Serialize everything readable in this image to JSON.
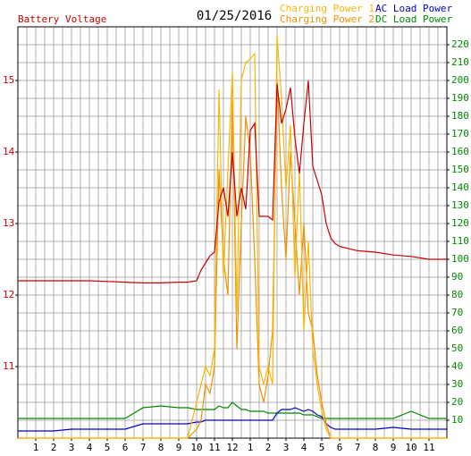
{
  "chart_data": {
    "type": "line",
    "title": "01/25/2016",
    "x": [
      0,
      1,
      2,
      3,
      4,
      5,
      6,
      7,
      8,
      9,
      9.5,
      10,
      10.25,
      10.5,
      10.75,
      11,
      11.25,
      11.5,
      11.75,
      12,
      12.25,
      12.5,
      12.75,
      13,
      13.25,
      13.5,
      13.75,
      14,
      14.25,
      14.5,
      14.75,
      15,
      15.25,
      15.5,
      15.75,
      16,
      16.25,
      16.5,
      16.75,
      17,
      17.25,
      17.5,
      17.75,
      18,
      19,
      20,
      21,
      22,
      23,
      24
    ],
    "xlim": [
      0,
      24
    ],
    "xticks": [
      1,
      2,
      3,
      4,
      5,
      6,
      7,
      8,
      9,
      10,
      11,
      12,
      {
        "value": 13,
        "label": "1"
      },
      {
        "value": 14,
        "label": "2"
      },
      {
        "value": 15,
        "label": "3"
      },
      {
        "value": 16,
        "label": "4"
      },
      {
        "value": 17,
        "label": "5"
      },
      {
        "value": 18,
        "label": "6"
      },
      {
        "value": 19,
        "label": "7"
      },
      {
        "value": 20,
        "label": "8"
      },
      {
        "value": 21,
        "label": "9"
      },
      {
        "value": 22,
        "label": "10"
      },
      {
        "value": 23,
        "label": "11"
      }
    ],
    "ylim": [
      10,
      15.75
    ],
    "yticks": [
      11,
      12,
      13,
      14,
      15
    ],
    "y2lim": [
      0,
      230
    ],
    "y2ticks": [
      10,
      20,
      30,
      40,
      50,
      60,
      70,
      80,
      90,
      100,
      110,
      120,
      130,
      140,
      150,
      160,
      170,
      180,
      190,
      200,
      210,
      220
    ],
    "grid": true,
    "series": [
      {
        "name": "Battery Voltage",
        "color": "#cc0000",
        "values": [
          12.2,
          12.2,
          12.2,
          12.2,
          12.2,
          12.19,
          12.18,
          12.17,
          12.17,
          12.18,
          12.18,
          12.2,
          12.35,
          12.45,
          12.55,
          12.6,
          13.3,
          13.5,
          13.1,
          14.0,
          13.1,
          13.5,
          13.2,
          14.3,
          14.4,
          13.1,
          13.1,
          13.1,
          13.05,
          14.95,
          14.4,
          14.6,
          14.9,
          14.2,
          13.7,
          14.4,
          15.0,
          13.8,
          13.6,
          13.4,
          13.0,
          12.8,
          12.72,
          12.68,
          12.62,
          12.6,
          12.56,
          12.54,
          12.5,
          12.5
        ]
      },
      {
        "name": "Charging Power 1",
        "color": "#ffb400",
        "axis": "y2",
        "values": [
          0,
          0,
          0,
          0,
          0,
          0,
          0,
          0,
          0,
          0,
          0,
          20,
          30,
          40,
          35,
          50,
          195,
          90,
          150,
          205,
          70,
          200,
          210,
          212,
          215,
          40,
          30,
          40,
          30,
          225,
          190,
          140,
          175,
          90,
          150,
          60,
          110,
          50,
          30,
          15,
          5,
          0,
          0,
          0,
          0,
          0,
          0,
          0,
          0,
          0
        ]
      },
      {
        "name": "Charging Power 2",
        "color": "#f09000",
        "axis": "y2",
        "values": [
          0,
          0,
          0,
          0,
          0,
          0,
          0,
          0,
          0,
          0,
          0,
          5,
          10,
          30,
          25,
          40,
          150,
          100,
          80,
          190,
          50,
          120,
          180,
          160,
          100,
          30,
          20,
          35,
          60,
          200,
          140,
          100,
          160,
          120,
          80,
          120,
          70,
          60,
          35,
          20,
          8,
          0,
          0,
          0,
          0,
          0,
          0,
          0,
          0,
          0
        ]
      },
      {
        "name": "AC Load Power",
        "color": "#0000cc",
        "axis": "y2",
        "values": [
          4,
          4,
          4,
          5,
          5,
          5,
          5,
          8,
          8,
          8,
          8,
          9,
          9,
          10,
          10,
          10,
          10,
          10,
          10,
          10,
          10,
          10,
          10,
          10,
          10,
          10,
          10,
          10,
          10,
          14,
          16,
          16,
          16,
          17,
          16,
          15,
          16,
          15,
          13,
          12,
          8,
          6,
          5,
          5,
          5,
          5,
          6,
          5,
          5,
          5
        ]
      },
      {
        "name": "DC Load Power",
        "color": "#008800",
        "axis": "y2",
        "values": [
          11,
          11,
          11,
          11,
          11,
          11,
          11,
          17,
          18,
          17,
          17,
          16,
          16,
          16,
          16,
          16,
          18,
          17,
          17,
          20,
          18,
          16,
          16,
          15,
          15,
          15,
          15,
          14,
          14,
          14,
          14,
          14,
          14,
          14,
          14,
          13,
          13,
          13,
          12,
          11,
          11,
          11,
          11,
          11,
          11,
          11,
          11,
          15,
          11,
          11
        ]
      }
    ]
  }
}
